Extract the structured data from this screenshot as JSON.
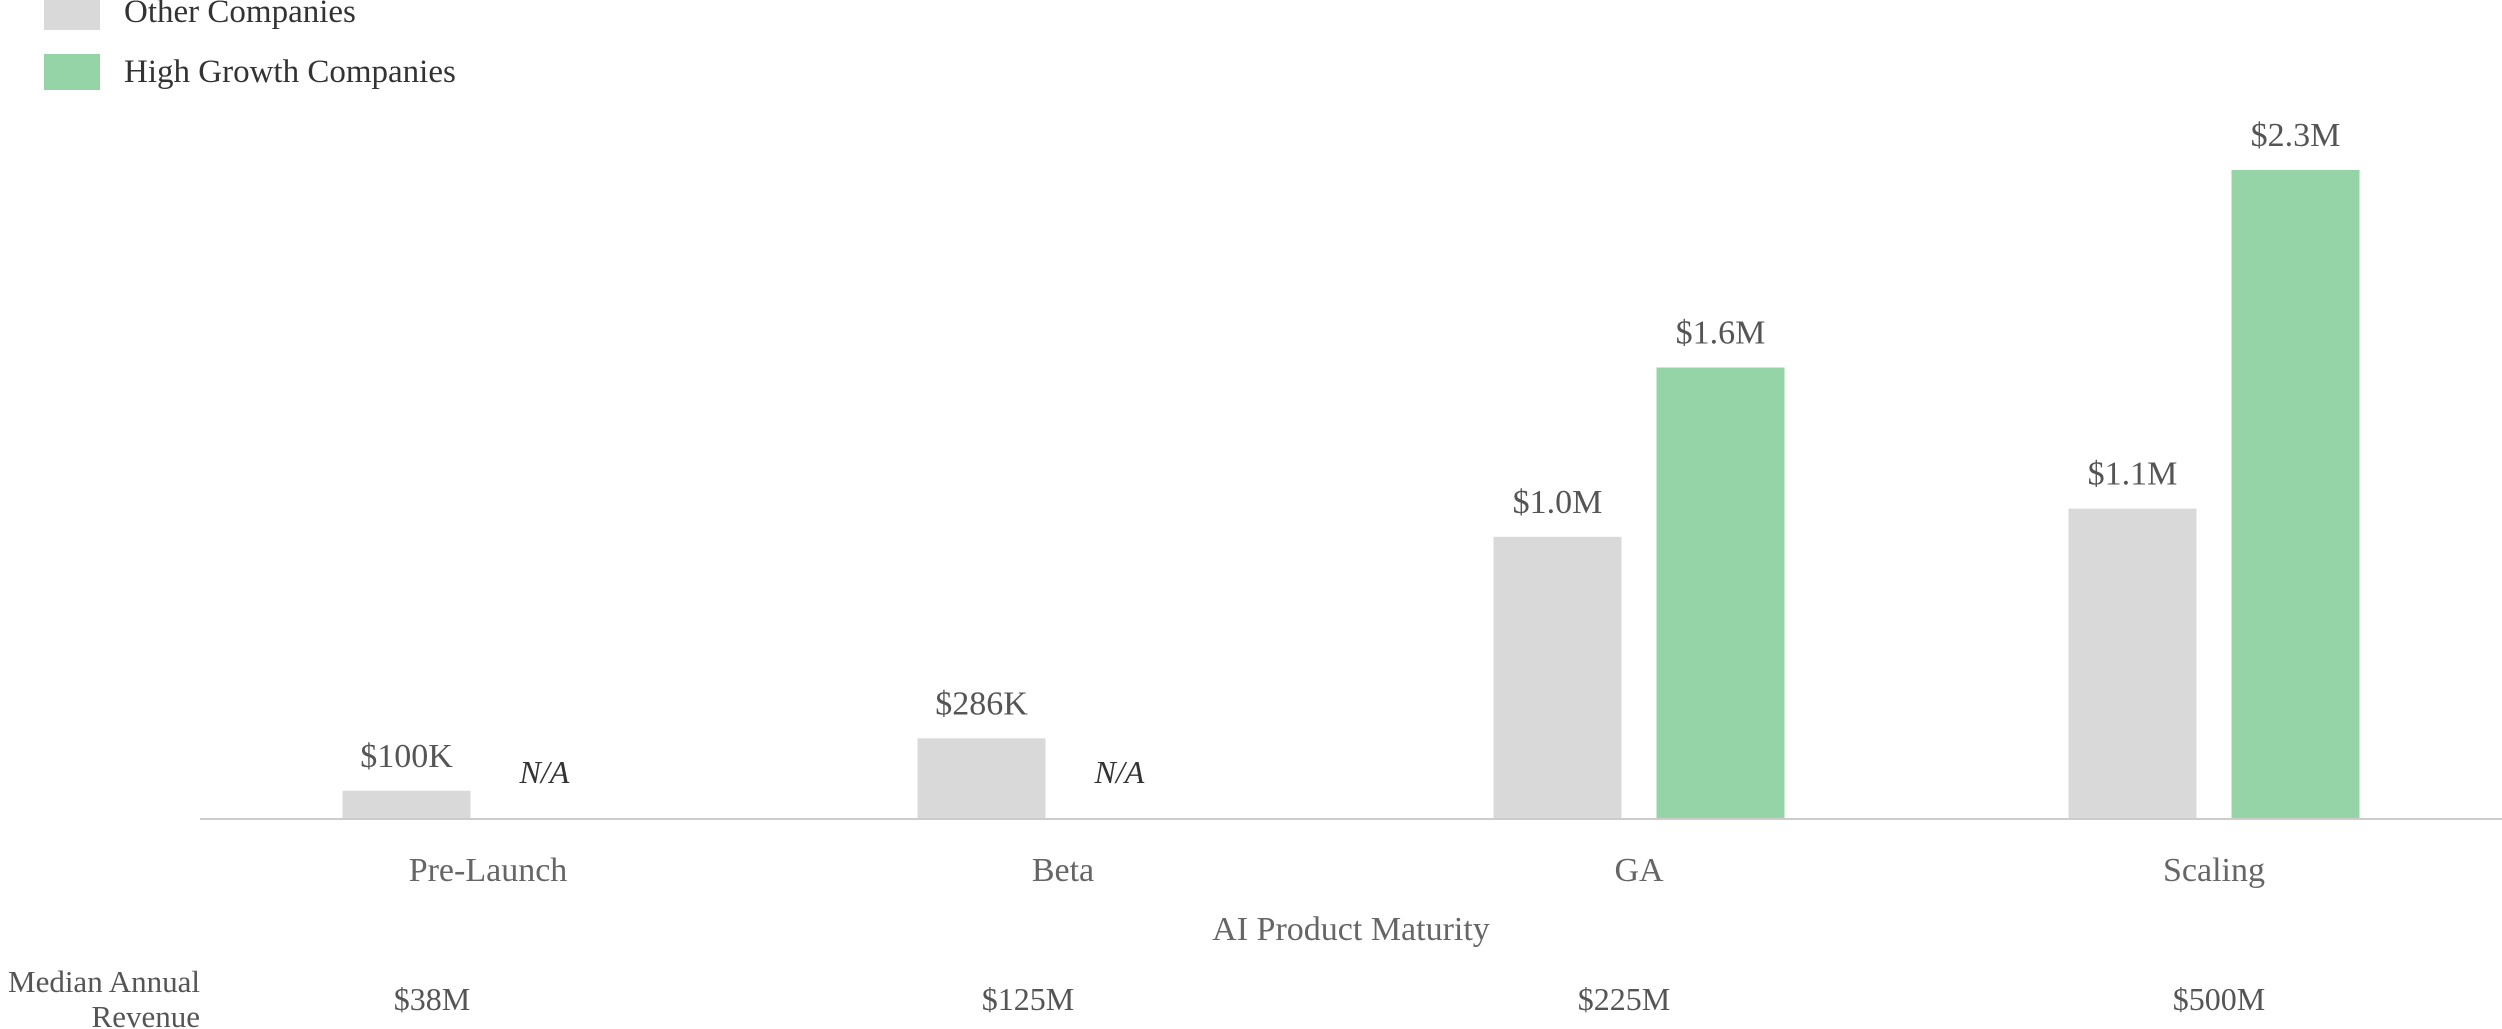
{
  "legend": {
    "items": [
      {
        "label": "Other Companies",
        "color": "#d9d9d9"
      },
      {
        "label": "High Growth Companies",
        "color": "#94d4a6"
      }
    ]
  },
  "chart_data": {
    "type": "bar",
    "title": "",
    "xlabel": "AI Product Maturity",
    "ylabel": "",
    "ylim": [
      0,
      2.3
    ],
    "grid": false,
    "legend_position": "top-left",
    "categories": [
      "Pre-Launch",
      "Beta",
      "GA",
      "Scaling"
    ],
    "series": [
      {
        "name": "Other Companies",
        "color": "#d9d9d9",
        "values": [
          0.1,
          0.286,
          1.0,
          1.1
        ],
        "labels": [
          "$100K",
          "$286K",
          "$1.0M",
          "$1.1M"
        ]
      },
      {
        "name": "High Growth Companies",
        "color": "#94d4a6",
        "values": [
          null,
          null,
          1.6,
          2.3
        ],
        "labels": [
          "N/A",
          "N/A",
          "$1.6M",
          "$2.3M"
        ]
      }
    ],
    "revenue_row": {
      "title_line1": "Median Annual",
      "title_line2": "Revenue",
      "values": [
        "$38M",
        "$125M",
        "$225M",
        "$500M"
      ]
    }
  }
}
